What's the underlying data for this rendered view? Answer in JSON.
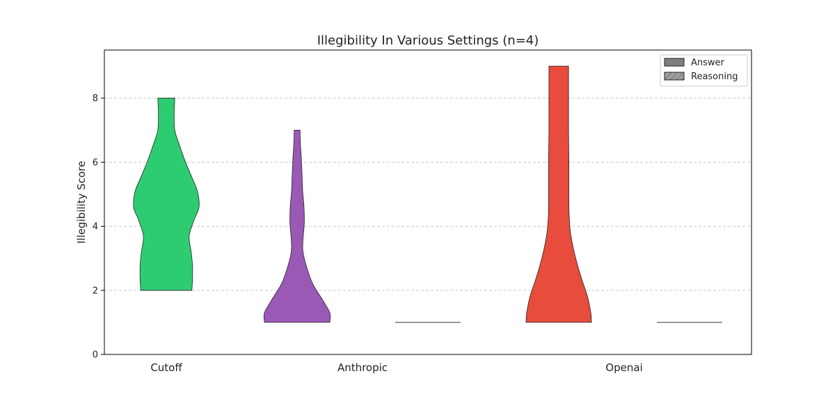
{
  "chart_data": {
    "type": "violin",
    "title": "Illegibility In Various Settings (n=4)",
    "xlabel": "",
    "ylabel": "Illegibility Score",
    "ylim": [
      0,
      9.5
    ],
    "yticks": [
      0,
      2,
      4,
      6,
      8
    ],
    "grid": "y-dashed",
    "legend_position": "top-right",
    "categories": [
      "Cutoff",
      "Anthropic",
      "Openai"
    ],
    "legend": [
      {
        "name": "Answer",
        "style": "solid",
        "color": "#7f7f7f"
      },
      {
        "name": "Reasoning",
        "style": "hatched",
        "color": "#9e9e9e"
      }
    ],
    "violins": [
      {
        "category": "Cutoff",
        "group": "Answer",
        "color": "#2ecc71",
        "min": 2,
        "max": 8,
        "profile": [
          [
            2.0,
            0.78
          ],
          [
            2.3,
            0.8
          ],
          [
            2.8,
            0.8
          ],
          [
            3.2,
            0.76
          ],
          [
            3.7,
            0.7
          ],
          [
            4.2,
            0.85
          ],
          [
            4.6,
            1.0
          ],
          [
            5.1,
            0.95
          ],
          [
            5.6,
            0.75
          ],
          [
            6.1,
            0.55
          ],
          [
            6.6,
            0.38
          ],
          [
            7.0,
            0.26
          ],
          [
            7.5,
            0.24
          ],
          [
            8.0,
            0.26
          ]
        ]
      },
      {
        "category": "Anthropic",
        "group": "Answer",
        "color": "#9b59b6",
        "min": 1,
        "max": 7,
        "profile": [
          [
            1.0,
            1.0
          ],
          [
            1.3,
            1.0
          ],
          [
            1.7,
            0.78
          ],
          [
            2.2,
            0.48
          ],
          [
            2.7,
            0.3
          ],
          [
            3.2,
            0.18
          ],
          [
            3.6,
            0.18
          ],
          [
            4.1,
            0.22
          ],
          [
            4.6,
            0.21
          ],
          [
            5.1,
            0.17
          ],
          [
            5.6,
            0.15
          ],
          [
            6.1,
            0.13
          ],
          [
            6.6,
            0.1
          ],
          [
            7.0,
            0.09
          ]
        ]
      },
      {
        "category": "Anthropic",
        "group": "Reasoning",
        "color": "#7f7f7f",
        "min": 1,
        "max": 1,
        "profile": []
      },
      {
        "category": "Openai",
        "group": "Answer",
        "color": "#e74c3c",
        "min": 1,
        "max": 9,
        "profile": [
          [
            1.0,
            1.0
          ],
          [
            1.3,
            0.98
          ],
          [
            1.8,
            0.88
          ],
          [
            2.3,
            0.72
          ],
          [
            2.8,
            0.57
          ],
          [
            3.3,
            0.45
          ],
          [
            3.8,
            0.36
          ],
          [
            4.3,
            0.32
          ],
          [
            4.8,
            0.31
          ],
          [
            5.3,
            0.31
          ],
          [
            6.0,
            0.31
          ],
          [
            7.0,
            0.3
          ],
          [
            8.0,
            0.3
          ],
          [
            9.0,
            0.3
          ]
        ]
      },
      {
        "category": "Openai",
        "group": "Reasoning",
        "color": "#7f7f7f",
        "min": 1,
        "max": 1,
        "profile": []
      }
    ]
  }
}
